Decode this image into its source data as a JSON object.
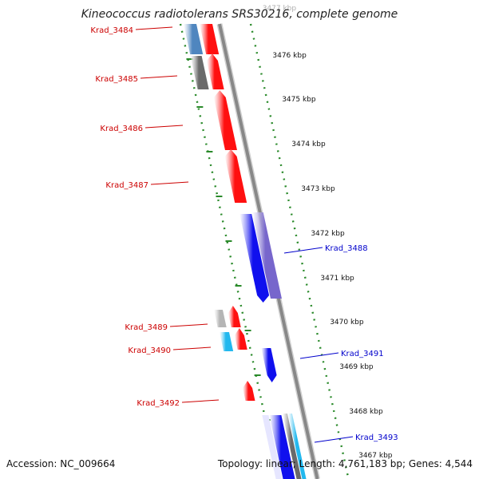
{
  "title": "Kineococcus radiotolerans SRS30216, complete genome",
  "accession": "Accession: NC_009664",
  "footer": "Topology: linear; Length: 4,761,183 bp; Genes: 4,544",
  "colors": {
    "label_left": "#cc0000",
    "label_right": "#0000cc",
    "tick_dots": "#2a8a2a",
    "backbone": "#888888",
    "gene_red": "#ff1010",
    "gene_blue": "#1010ee",
    "gene_lavender": "#7766cc",
    "gene_steelblue": "#4f86bf",
    "gene_gray": "#6a6a6a",
    "gene_lightgray": "#b5b5b5",
    "gene_cyan": "#22b8ee"
  },
  "ticks": [
    {
      "label": "3477 kbp",
      "partial": true
    },
    {
      "label": "3476 kbp"
    },
    {
      "label": "3475 kbp"
    },
    {
      "label": "3474 kbp"
    },
    {
      "label": "3473 kbp"
    },
    {
      "label": "3472 kbp"
    },
    {
      "label": "3471 kbp"
    },
    {
      "label": "3470 kbp"
    },
    {
      "label": "3469 kbp"
    },
    {
      "label": "3468 kbp"
    },
    {
      "label": "3467 kbp"
    }
  ],
  "genes_left": [
    {
      "label": "Krad_3484"
    },
    {
      "label": "Krad_3485"
    },
    {
      "label": "Krad_3486"
    },
    {
      "label": "Krad_3487"
    },
    {
      "label": "Krad_3489"
    },
    {
      "label": "Krad_3490"
    },
    {
      "label": "Krad_3492"
    }
  ],
  "genes_right": [
    {
      "label": "Krad_3488"
    },
    {
      "label": "Krad_3491"
    },
    {
      "label": "Krad_3493"
    }
  ]
}
